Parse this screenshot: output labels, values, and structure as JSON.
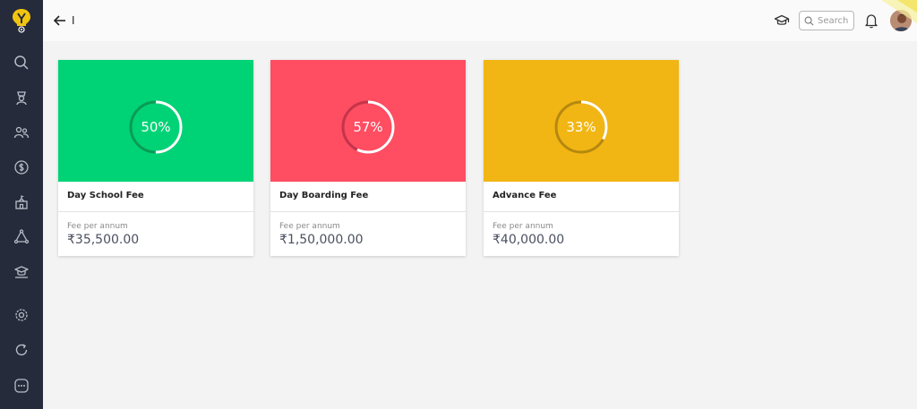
{
  "header": {
    "title": "I",
    "search_placeholder": "Search"
  },
  "colors": {
    "sidebar": "#262b3b",
    "logo_accent": "#f2c40f",
    "icon_light": "#b9bdc8"
  },
  "sidebar": {
    "items": [
      {
        "icon": "search-icon"
      },
      {
        "icon": "graduate-icon"
      },
      {
        "icon": "users-icon"
      },
      {
        "icon": "dollar-icon"
      },
      {
        "icon": "school-building-icon"
      },
      {
        "icon": "recycle-icon"
      },
      {
        "icon": "classroom-icon"
      },
      {
        "icon": "gear-icon"
      },
      {
        "icon": "refresh-icon"
      },
      {
        "icon": "more-icon"
      }
    ]
  },
  "cards": [
    {
      "name": "Day School Fee",
      "percent_label": "50%",
      "progress": 0.5,
      "subtitle": "Fee per annum",
      "amount": "₹35,500.00",
      "color": "#00d375",
      "track": "#0a9b55"
    },
    {
      "name": "Day Boarding Fee",
      "percent_label": "57%",
      "progress": 0.57,
      "subtitle": "Fee per annum",
      "amount": "₹1,50,000.00",
      "color": "#ff4d62",
      "track": "#c4344a"
    },
    {
      "name": "Advance Fee",
      "percent_label": "33%",
      "progress": 0.33,
      "subtitle": "Fee per annum",
      "amount": "₹40,000.00",
      "color": "#f2b614",
      "track": "#b58810"
    }
  ]
}
